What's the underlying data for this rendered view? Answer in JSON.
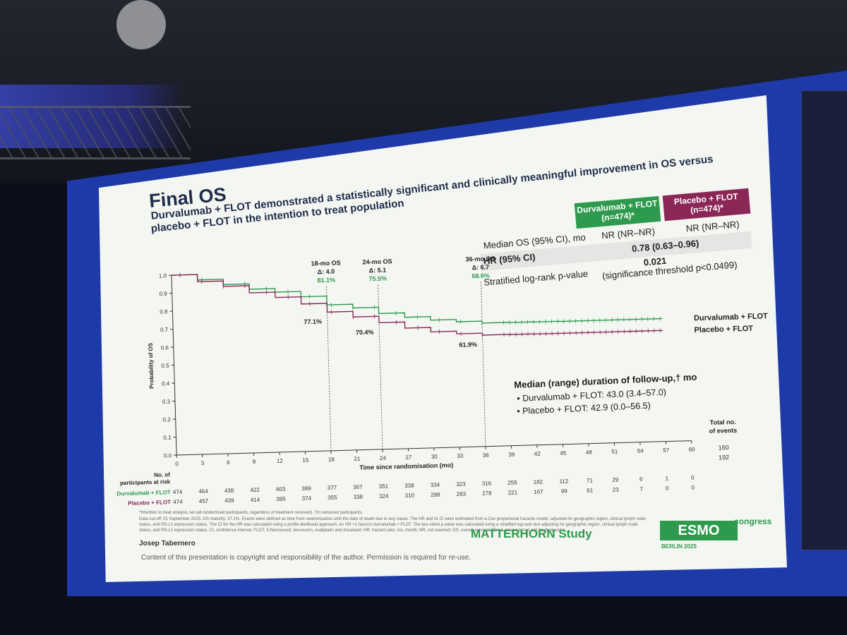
{
  "slide": {
    "title": "Final OS",
    "subtitle_line1": "Durvalumab + FLOT demonstrated a statistically significant and clinically meaningful improvement in OS versus",
    "subtitle_line2": "placebo + FLOT in the intention to treat population",
    "study": "MATTERHORN Study",
    "presenter": "Josep Tabernero",
    "copyright": "Content of this presentation is copyright and responsibility of the author. Permission is required for re-use.",
    "congress_brand": "ESMO",
    "congress_label": "congress",
    "congress_city": "BERLIN 2025",
    "footnote_1": "*Intention to treat analysis set (all randomised participants, regardless of treatment received). †In censored participants.",
    "footnote_2": "Data cut-off: 01 September 2025. OS maturity: 37.1%. Events were defined as time from randomisation until the date of death due to any cause. The HR and its CI were estimated from a Cox proportional hazards model, adjusted for geographic region, clinical lymph node status, and PD-L1 expression status.",
    "footnote_3": "The CI for the HR was calculated using a profile likelihood approach. An HR <1 favours durvalumab + FLOT. The two-sided p-value was calculated using a stratified log-rank test adjusting for geographic region, clinical lymph node status, and PD-L1 expression status.",
    "footnote_4": "CI, confidence interval; FLOT, 5-fluorouracil, leucovorin, oxaliplatin and docetaxel; HR, hazard ratio; mo, month; NR, not reached; OS, overall survival; PD-L1, programmed cell death ligand-1."
  },
  "stats_table": {
    "col_durva": "Durvalumab + FLOT (n=474)*",
    "col_placebo": "Placebo + FLOT (n=474)*",
    "median_label": "Median OS (95% CI), mo",
    "median_durva": "NR (NR–NR)",
    "median_placebo": "NR (NR–NR)",
    "hr_label": "HR (95% CI)",
    "hr_value": "0.78 (0.63–0.96)",
    "p_label": "Stratified log-rank p-value",
    "p_value": "0.021",
    "p_note": "(significance threshold p<0.0499)"
  },
  "followup": {
    "title": "Median (range) duration of follow-up,† mo",
    "durva": "Durvalumab + FLOT: 43.0 (3.4–57.0)",
    "placebo": "Placebo + FLOT: 42.9 (0.0–56.5)"
  },
  "landmarks": [
    {
      "label": "18-mo OS",
      "delta": "Δ: 4.0",
      "durva": "81.1%",
      "placebo": "77.1%"
    },
    {
      "label": "24-mo OS",
      "delta": "Δ: 5.1",
      "durva": "75.5%",
      "placebo": "70.4%"
    },
    {
      "label": "36-mo OS",
      "delta": "Δ: 6.7",
      "durva": "68.6%",
      "placebo": "61.9%"
    }
  ],
  "risk_table": {
    "title": "No. of participants at risk",
    "events_title": "Total no. of events",
    "rows": [
      {
        "name": "Durvalumab + FLOT",
        "values": [
          "474",
          "464",
          "438",
          "422",
          "403",
          "389",
          "377",
          "367",
          "351",
          "338",
          "334",
          "323",
          "316",
          "255",
          "182",
          "112",
          "71",
          "29",
          "6",
          "1",
          "0"
        ],
        "events": "160"
      },
      {
        "name": "Placebo + FLOT",
        "values": [
          "474",
          "457",
          "439",
          "414",
          "395",
          "374",
          "355",
          "338",
          "324",
          "310",
          "298",
          "293",
          "278",
          "221",
          "167",
          "99",
          "61",
          "23",
          "7",
          "0",
          "0"
        ],
        "events": "192"
      }
    ]
  },
  "chart_data": {
    "type": "line",
    "xlabel": "Time since randomisation (mo)",
    "ylabel": "Probability of OS",
    "xlim": [
      0,
      60
    ],
    "ylim": [
      0,
      1.0
    ],
    "x_ticks": [
      "0",
      "3",
      "6",
      "9",
      "12",
      "15",
      "18",
      "21",
      "24",
      "27",
      "30",
      "33",
      "36",
      "39",
      "42",
      "45",
      "48",
      "51",
      "54",
      "57",
      "60"
    ],
    "y_ticks": [
      "0.0",
      "0.1",
      "0.2",
      "0.3",
      "0.4",
      "0.5",
      "0.6",
      "0.7",
      "0.8",
      "0.9",
      "1.0"
    ],
    "series": [
      {
        "name": "Durvalumab + FLOT",
        "color": "#2e9a4d",
        "x": [
          0,
          3,
          6,
          9,
          12,
          15,
          18,
          21,
          24,
          27,
          30,
          33,
          36,
          39,
          42,
          45,
          48,
          51,
          54,
          57
        ],
        "y": [
          1.0,
          0.97,
          0.94,
          0.91,
          0.89,
          0.86,
          0.811,
          0.79,
          0.755,
          0.73,
          0.71,
          0.697,
          0.686,
          0.685,
          0.684,
          0.683,
          0.683,
          0.683,
          0.683,
          0.683
        ]
      },
      {
        "name": "Placebo + FLOT",
        "color": "#8b2757",
        "x": [
          0,
          3,
          6,
          9,
          12,
          15,
          18,
          21,
          24,
          27,
          30,
          33,
          36,
          39,
          42,
          45,
          48,
          51,
          54,
          57
        ],
        "y": [
          1.0,
          0.96,
          0.93,
          0.89,
          0.86,
          0.82,
          0.771,
          0.74,
          0.704,
          0.67,
          0.645,
          0.63,
          0.619,
          0.618,
          0.617,
          0.617,
          0.617,
          0.617,
          0.617,
          0.617
        ]
      }
    ],
    "landmark_months": [
      18,
      24,
      36
    ],
    "legend": "right"
  }
}
